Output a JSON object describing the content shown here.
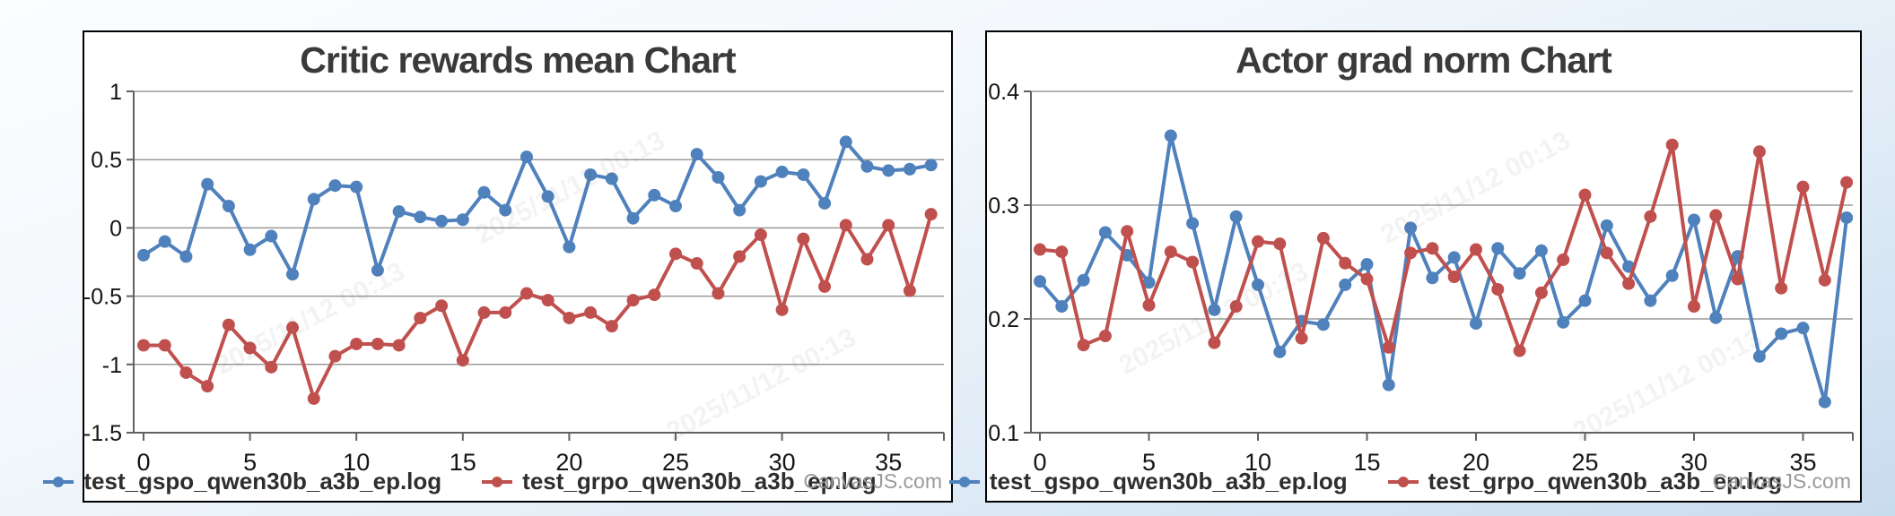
{
  "credit": "CanvasJS.com",
  "watermark": "2025/11/12 00:13",
  "chart_data": [
    {
      "type": "line",
      "title": "Critic rewards mean Chart",
      "xlabel": "",
      "ylabel": "",
      "ylim": [
        -1.5,
        1
      ],
      "ytick_step": 0.5,
      "xticks": [
        0,
        5,
        10,
        15,
        20,
        25,
        30,
        35
      ],
      "grid": true,
      "legend_position": "bottom",
      "x": [
        0,
        1,
        2,
        3,
        4,
        5,
        6,
        7,
        8,
        9,
        10,
        11,
        12,
        13,
        14,
        15,
        16,
        17,
        18,
        19,
        20,
        21,
        22,
        23,
        24,
        25,
        26,
        27,
        28,
        29,
        30,
        31,
        32,
        33,
        34,
        35,
        36,
        37
      ],
      "series": [
        {
          "name": "test_gspo_qwen30b_a3b_ep.log",
          "color": "#4F81BC",
          "values": [
            -0.2,
            -0.1,
            -0.21,
            0.32,
            0.16,
            -0.16,
            -0.06,
            -0.34,
            0.21,
            0.31,
            0.3,
            -0.31,
            0.12,
            0.08,
            0.05,
            0.06,
            0.26,
            0.13,
            0.52,
            0.23,
            -0.14,
            0.39,
            0.36,
            0.07,
            0.24,
            0.16,
            0.54,
            0.37,
            0.13,
            0.34,
            0.41,
            0.39,
            0.18,
            0.63,
            0.45,
            0.42,
            0.43,
            0.46
          ]
        },
        {
          "name": "test_grpo_qwen30b_a3b_ep.log",
          "color": "#C0504E",
          "values": [
            -0.86,
            -0.86,
            -1.06,
            -1.16,
            -0.71,
            -0.88,
            -1.02,
            -0.73,
            -1.25,
            -0.94,
            -0.85,
            -0.85,
            -0.86,
            -0.66,
            -0.57,
            -0.97,
            -0.62,
            -0.62,
            -0.48,
            -0.53,
            -0.66,
            -0.62,
            -0.72,
            -0.53,
            -0.49,
            -0.19,
            -0.26,
            -0.48,
            -0.21,
            -0.05,
            -0.6,
            -0.08,
            -0.43,
            0.02,
            -0.23,
            0.02,
            -0.46,
            0.1
          ]
        }
      ]
    },
    {
      "type": "line",
      "title": "Actor grad norm Chart",
      "xlabel": "",
      "ylabel": "",
      "ylim": [
        0.1,
        0.4
      ],
      "ytick_step": 0.1,
      "xticks": [
        0,
        5,
        10,
        15,
        20,
        25,
        30,
        35
      ],
      "grid": true,
      "legend_position": "bottom",
      "x": [
        0,
        1,
        2,
        3,
        4,
        5,
        6,
        7,
        8,
        9,
        10,
        11,
        12,
        13,
        14,
        15,
        16,
        17,
        18,
        19,
        20,
        21,
        22,
        23,
        24,
        25,
        26,
        27,
        28,
        29,
        30,
        31,
        32,
        33,
        34,
        35,
        36,
        37
      ],
      "series": [
        {
          "name": "test_gspo_qwen30b_a3b_ep.log",
          "color": "#4F81BC",
          "values": [
            0.233,
            0.211,
            0.234,
            0.276,
            0.256,
            0.232,
            0.361,
            0.284,
            0.208,
            0.29,
            0.23,
            0.171,
            0.198,
            0.195,
            0.23,
            0.248,
            0.142,
            0.28,
            0.236,
            0.254,
            0.196,
            0.262,
            0.24,
            0.26,
            0.197,
            0.216,
            0.282,
            0.246,
            0.216,
            0.238,
            0.287,
            0.201,
            0.255,
            0.167,
            0.187,
            0.192,
            0.127,
            0.289
          ]
        },
        {
          "name": "test_grpo_qwen30b_a3b_ep.log",
          "color": "#C0504E",
          "values": [
            0.261,
            0.259,
            0.177,
            0.185,
            0.277,
            0.212,
            0.259,
            0.25,
            0.179,
            0.211,
            0.268,
            0.266,
            0.183,
            0.271,
            0.249,
            0.235,
            0.175,
            0.258,
            0.262,
            0.237,
            0.261,
            0.226,
            0.172,
            0.223,
            0.252,
            0.309,
            0.258,
            0.231,
            0.29,
            0.353,
            0.211,
            0.291,
            0.235,
            0.347,
            0.227,
            0.316,
            0.234,
            0.32
          ]
        }
      ]
    }
  ]
}
